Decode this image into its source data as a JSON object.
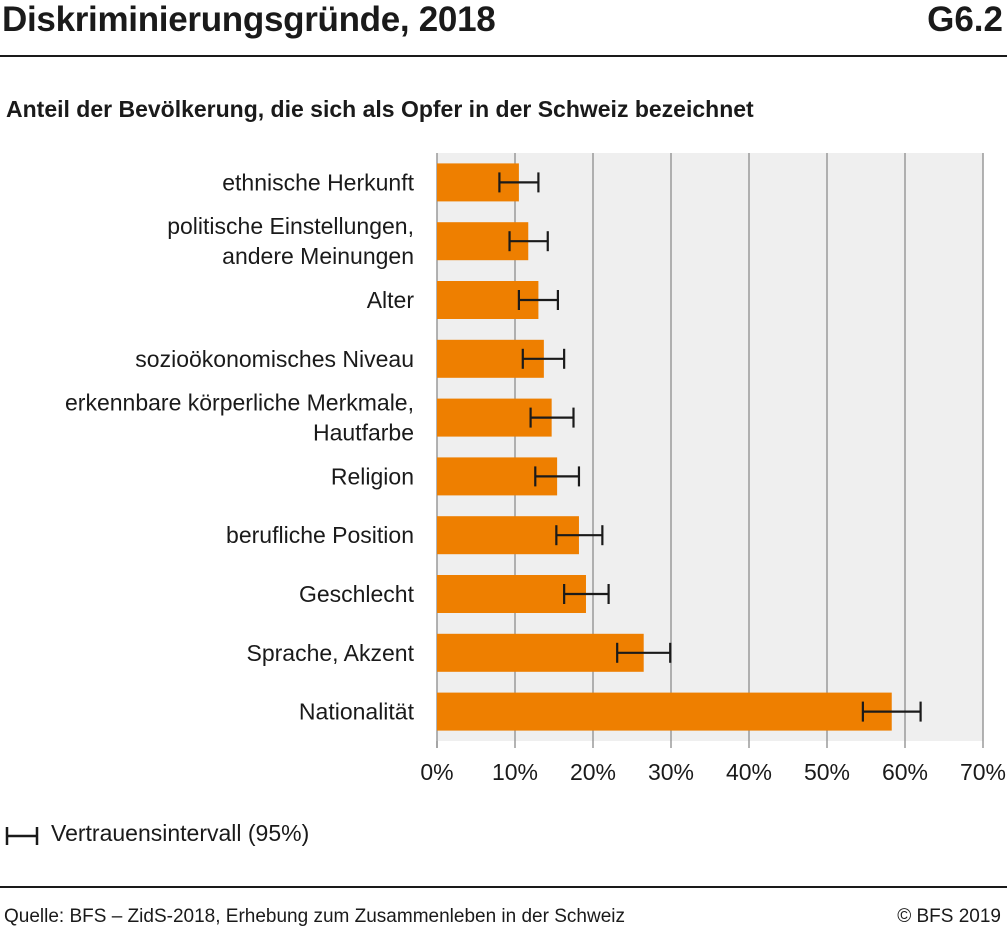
{
  "header": {
    "title": "Diskriminierungsgründe, 2018",
    "code": "G6.2"
  },
  "subtitle": "Anteil der Bevölkerung, die sich als Opfer in der Schweiz bezeichnet",
  "chart_data": {
    "type": "bar",
    "orientation": "horizontal",
    "categories": [
      [
        "ethnische Herkunft"
      ],
      [
        "politische Einstellungen,",
        "andere Meinungen"
      ],
      [
        "Alter"
      ],
      [
        "sozioökonomisches Niveau"
      ],
      [
        "erkennbare körperliche Merkmale,",
        "Hautfarbe"
      ],
      [
        "Religion"
      ],
      [
        "berufliche Position"
      ],
      [
        "Geschlecht"
      ],
      [
        "Sprache, Akzent"
      ],
      [
        "Nationalität"
      ]
    ],
    "values": [
      10.5,
      11.7,
      13.0,
      13.7,
      14.7,
      15.4,
      18.2,
      19.1,
      26.5,
      58.3
    ],
    "ci_low": [
      8.0,
      9.3,
      10.5,
      11.0,
      12.0,
      12.6,
      15.3,
      16.3,
      23.1,
      54.6
    ],
    "ci_high": [
      13.0,
      14.2,
      15.5,
      16.3,
      17.5,
      18.2,
      21.2,
      22.0,
      29.9,
      62.0
    ],
    "xlim": [
      0,
      70
    ],
    "xticks": [
      "0%",
      "10%",
      "20%",
      "30%",
      "40%",
      "50%",
      "60%",
      "70%"
    ],
    "grid": true,
    "colors": {
      "bar": "#ee7f00",
      "plot_background": "#efefef",
      "grid": "#9a9a9a",
      "error_bar": "#1a1a1a"
    },
    "legend": {
      "position": "bottom-left",
      "label": "Vertrauensintervall (95%)",
      "icon": "error-bar-icon"
    }
  },
  "footer": {
    "source": "Quelle: BFS – ZidS-2018, Erhebung zum Zusammenleben in der Schweiz",
    "copyright": "© BFS 2019"
  }
}
